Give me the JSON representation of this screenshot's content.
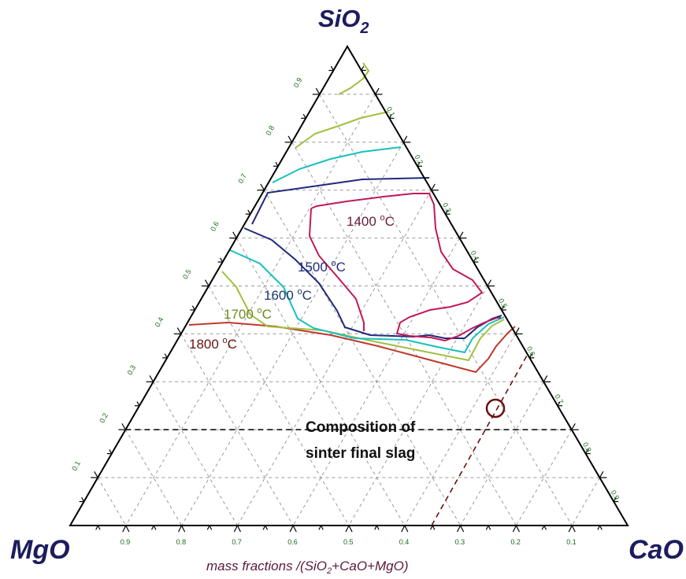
{
  "chart_data": {
    "type": "ternary",
    "apex_labels": {
      "top": "SiO",
      "top_sub": "2",
      "left": "MgO",
      "right": "CaO"
    },
    "axis_caption": {
      "pre": "mass fractions /(SiO",
      "sub1": "2",
      "post": "+CaO+MgO)"
    },
    "bottom_ticks": [
      "0.9",
      "0.8",
      "0.7",
      "0.6",
      "0.5",
      "0.4",
      "0.3",
      "0.2",
      "0.1"
    ],
    "left_ticks": [
      "0.1",
      "0.2",
      "0.3",
      "0.4",
      "0.5",
      "0.6",
      "0.7",
      "0.8",
      "0.9"
    ],
    "right_ticks": [
      "0.1",
      "0.2",
      "0.3",
      "0.4",
      "0.5",
      "0.6",
      "0.7",
      "0.8",
      "0.9"
    ],
    "grid": true,
    "grid_step": 0.1,
    "isotherms": [
      {
        "name": "1400 °C",
        "label": "1400 oC",
        "color": "#c2185b",
        "label_color": "#6a1b3a",
        "points": [
          [
            0.665,
            0.3,
            0.035
          ],
          [
            0.64,
            0.31,
            0.05
          ],
          [
            0.57,
            0.33,
            0.1
          ],
          [
            0.47,
            0.35,
            0.18
          ],
          [
            0.42,
            0.36,
            0.22
          ],
          [
            0.405,
            0.375,
            0.22
          ],
          [
            0.41,
            0.43,
            0.16
          ],
          [
            0.42,
            0.47,
            0.11
          ],
          [
            0.435,
            0.49,
            0.075
          ],
          [
            0.45,
            0.5,
            0.05
          ]
        ]
      },
      {
        "name": "1400 °C",
        "label": "",
        "color": "#c2185b",
        "label_color": "#6a1b3a",
        "points": [
          [
            0.64,
            0.36,
            0.0
          ],
          [
            0.62,
            0.37,
            0.01
          ],
          [
            0.6,
            0.38,
            0.02
          ],
          [
            0.55,
            0.38,
            0.07
          ],
          [
            0.5,
            0.39,
            0.11
          ],
          [
            0.47,
            0.41,
            0.12
          ],
          [
            0.42,
            0.45,
            0.13
          ],
          [
            0.4,
            0.48,
            0.12
          ]
        ]
      },
      {
        "name": "1500 °C",
        "label": "1500 oC",
        "color": "#1f2a7a",
        "label_color": "#1f2a7a",
        "points": [
          [
            0.3,
            0.52,
            0.18
          ],
          [
            0.26,
            0.56,
            0.18
          ],
          [
            0.235,
            0.6,
            0.165
          ],
          [
            0.235,
            0.63,
            0.135
          ],
          [
            0.25,
            0.66,
            0.09
          ],
          [
            0.27,
            0.68,
            0.05
          ],
          [
            0.29,
            0.69,
            0.02
          ]
        ]
      },
      {
        "name": "1600 °C",
        "label": "1600 oC",
        "color": "#18c0c0",
        "label_color": "#1a3a6a",
        "points": [
          [
            0.25,
            0.65,
            0.1
          ],
          [
            0.235,
            0.7,
            0.065
          ],
          [
            0.235,
            0.74,
            0.025
          ]
        ]
      },
      {
        "name": "1700 °C",
        "label": "1700 oC",
        "color": "#a0c040",
        "label_color": "#6a8a1a",
        "points": [
          [
            0.3,
            0.56,
            0.14
          ],
          [
            0.31,
            0.6,
            0.09
          ],
          [
            0.31,
            0.64,
            0.05
          ]
        ]
      },
      {
        "name": "1800 °C",
        "label": "1800 oC",
        "color": "#c0392b",
        "label_color": "#6a1010",
        "points": [
          [
            0.4,
            0.6,
            0.0
          ]
        ]
      }
    ],
    "composition_point": {
      "sio2": 0.2,
      "cao": 0.55,
      "mgo": 0.25,
      "label_line1": "Composition of",
      "label_line2": "sinter final slag",
      "color": "#6a1010"
    }
  }
}
